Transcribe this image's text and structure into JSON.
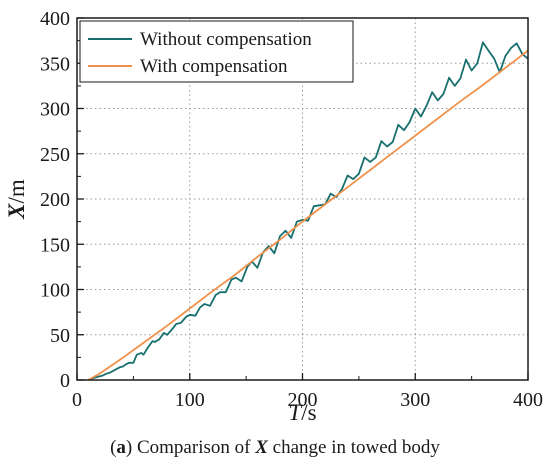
{
  "chart_data": {
    "type": "line",
    "title": "",
    "xlabel": {
      "var": "T",
      "unit": "/s"
    },
    "ylabel": {
      "var": "X",
      "unit": "/m"
    },
    "xlim": [
      0,
      400
    ],
    "ylim": [
      0,
      400
    ],
    "xticks": [
      0,
      100,
      200,
      300,
      400
    ],
    "yticks": [
      0,
      50,
      100,
      150,
      200,
      250,
      300,
      350,
      400
    ],
    "minor_ticks": true,
    "grid": "dotted",
    "legend_position": "top-left",
    "series": [
      {
        "name": "Without compensation",
        "color": "#17706e",
        "x": [
          10,
          12,
          14,
          17,
          20,
          23,
          26,
          29,
          32,
          35,
          38,
          41,
          43,
          46,
          50,
          53,
          57,
          59,
          63,
          67,
          69,
          73,
          77,
          80,
          85,
          88,
          92,
          97,
          100,
          105,
          109,
          113,
          118,
          123,
          127,
          132,
          137,
          141,
          146,
          151,
          155,
          160,
          165,
          170,
          175,
          180,
          185,
          190,
          195,
          200,
          205,
          210,
          215,
          220,
          225,
          230,
          235,
          240,
          245,
          250,
          255,
          260,
          265,
          270,
          275,
          280,
          285,
          290,
          295,
          300,
          305,
          310,
          315,
          320,
          325,
          330,
          335,
          340,
          345,
          350,
          355,
          360,
          365,
          370,
          375,
          380,
          385,
          390,
          395,
          400
        ],
        "y": [
          0,
          1,
          2,
          3,
          4,
          5,
          7,
          8,
          10,
          12,
          14,
          15,
          17,
          19,
          19,
          28,
          30,
          28,
          36,
          43,
          42,
          45,
          52,
          50,
          57,
          62,
          63,
          70,
          72,
          71,
          80,
          84,
          82,
          94,
          97,
          97,
          111,
          113,
          109,
          125,
          131,
          124,
          141,
          148,
          140,
          159,
          165,
          157,
          175,
          177,
          176,
          192,
          193,
          194,
          206,
          202,
          211,
          226,
          222,
          228,
          246,
          241,
          246,
          264,
          258,
          263,
          282,
          276,
          285,
          300,
          291,
          303,
          318,
          309,
          316,
          334,
          325,
          333,
          354,
          342,
          350,
          373,
          364,
          355,
          340,
          358,
          367,
          372,
          360,
          355
        ]
      },
      {
        "name": "With compensation",
        "color": "#f0914b",
        "x": [
          10,
          20,
          40,
          60,
          80,
          100,
          120,
          140,
          160,
          180,
          200,
          220,
          240,
          260,
          280,
          300,
          320,
          340,
          360,
          380,
          400
        ],
        "y": [
          0,
          7,
          24,
          42,
          60,
          79,
          98,
          116,
          136,
          155,
          175,
          194,
          213,
          232,
          251,
          270,
          289,
          308,
          326,
          345,
          364
        ]
      }
    ],
    "caption": {
      "label": "(a)",
      "text_before": " Comparison of ",
      "var": "X",
      "text_after": " change in towed body"
    }
  }
}
